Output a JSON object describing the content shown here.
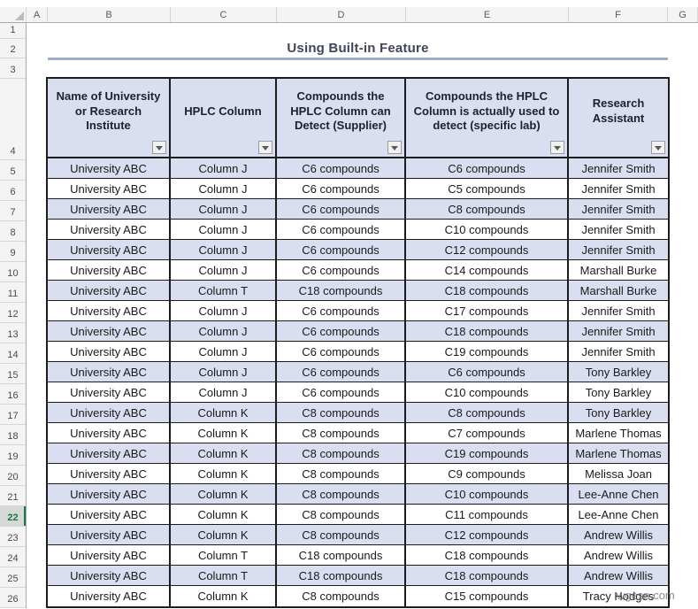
{
  "title": {
    "text": "Using Built-in Feature"
  },
  "grid": {
    "column_letters": [
      "A",
      "B",
      "C",
      "D",
      "E",
      "F",
      "G"
    ],
    "row_numbers": [
      1,
      2,
      3,
      4,
      5,
      6,
      7,
      8,
      9,
      10,
      11,
      12,
      13,
      14,
      15,
      16,
      17,
      18,
      19,
      20,
      21,
      22,
      23,
      24,
      25,
      26
    ],
    "selected_row": 22
  },
  "table": {
    "headers": [
      "Name of University or Research Institute",
      "HPLC Column",
      "Compounds the HPLC Column can Detect (Supplier)",
      "Compounds the HPLC Column is actually used to detect (specific lab)",
      "Research Assistant"
    ],
    "rows": [
      [
        "University ABC",
        "Column J",
        "C6 compounds",
        "C6 compounds",
        "Jennifer Smith"
      ],
      [
        "University ABC",
        "Column J",
        "C6 compounds",
        "C5 compounds",
        "Jennifer Smith"
      ],
      [
        "University ABC",
        "Column J",
        "C6 compounds",
        "C8 compounds",
        "Jennifer Smith"
      ],
      [
        "University ABC",
        "Column J",
        "C6 compounds",
        "C10 compounds",
        "Jennifer Smith"
      ],
      [
        "University ABC",
        "Column J",
        "C6 compounds",
        "C12 compounds",
        "Jennifer Smith"
      ],
      [
        "University ABC",
        "Column J",
        "C6 compounds",
        "C14 compounds",
        "Marshall Burke"
      ],
      [
        "University ABC",
        "Column T",
        "C18 compounds",
        "C18 compounds",
        "Marshall Burke"
      ],
      [
        "University ABC",
        "Column J",
        "C6 compounds",
        "C17 compounds",
        "Jennifer Smith"
      ],
      [
        "University ABC",
        "Column J",
        "C6 compounds",
        "C18 compounds",
        "Jennifer Smith"
      ],
      [
        "University ABC",
        "Column J",
        "C6 compounds",
        "C19 compounds",
        "Jennifer Smith"
      ],
      [
        "University ABC",
        "Column J",
        "C6 compounds",
        "C6 compounds",
        "Tony Barkley"
      ],
      [
        "University ABC",
        "Column J",
        "C6 compounds",
        "C10 compounds",
        "Tony Barkley"
      ],
      [
        "University ABC",
        "Column K",
        "C8 compounds",
        "C8 compounds",
        "Tony Barkley"
      ],
      [
        "University ABC",
        "Column K",
        "C8 compounds",
        "C7 compounds",
        "Marlene Thomas"
      ],
      [
        "University ABC",
        "Column K",
        "C8 compounds",
        "C19 compounds",
        "Marlene Thomas"
      ],
      [
        "University ABC",
        "Column K",
        "C8 compounds",
        "C9 compounds",
        "Melissa Joan"
      ],
      [
        "University ABC",
        "Column K",
        "C8 compounds",
        "C10 compounds",
        "Lee-Anne Chen"
      ],
      [
        "University ABC",
        "Column K",
        "C8 compounds",
        "C11 compounds",
        "Lee-Anne Chen"
      ],
      [
        "University ABC",
        "Column K",
        "C8 compounds",
        "C12 compounds",
        "Andrew Willis"
      ],
      [
        "University ABC",
        "Column T",
        "C18 compounds",
        "C18 compounds",
        "Andrew Willis"
      ],
      [
        "University ABC",
        "Column T",
        "C18 compounds",
        "C18 compounds",
        "Andrew Willis"
      ],
      [
        "University ABC",
        "Column K",
        "C8 compounds",
        "C15 compounds",
        "Tracy Hodges"
      ]
    ]
  },
  "watermark": {
    "text": "wgesn.com"
  },
  "colors": {
    "band_fill": "#D9DEF1",
    "header_fill": "#D9DEF1",
    "table_border": "#1C1C1C",
    "title_text": "#41455A",
    "title_underline": "#9FACCB",
    "selected_green": "#107C41"
  }
}
